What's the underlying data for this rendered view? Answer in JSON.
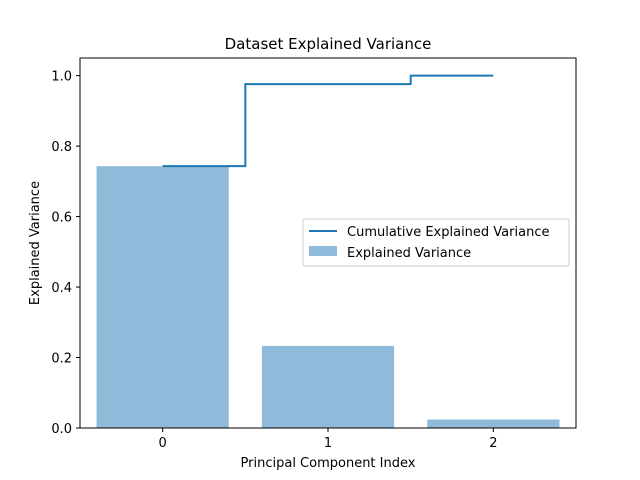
{
  "chart_data": {
    "type": "bar",
    "title": "Dataset Explained Variance",
    "xlabel": "Principal Component Index",
    "ylabel": "Explained Variance",
    "categories": [
      "0",
      "1",
      "2"
    ],
    "x": [
      0,
      1,
      2
    ],
    "xlim": [
      -0.5,
      2.5
    ],
    "ylim": [
      0,
      1.05
    ],
    "yticks": [
      0.0,
      0.2,
      0.4,
      0.6,
      0.8,
      1.0
    ],
    "ytick_labels": [
      "0.0",
      "0.2",
      "0.4",
      "0.6",
      "0.8",
      "1.0"
    ],
    "grid": false,
    "legend_position": "center-right",
    "series": [
      {
        "name": "Cumulative Explained Variance",
        "type": "step",
        "values": [
          0.743,
          0.976,
          1.0
        ],
        "color": "#1f77b4"
      },
      {
        "name": "Explained Variance",
        "type": "bar",
        "values": [
          0.743,
          0.233,
          0.024
        ],
        "color": "#8fbad9"
      }
    ]
  }
}
